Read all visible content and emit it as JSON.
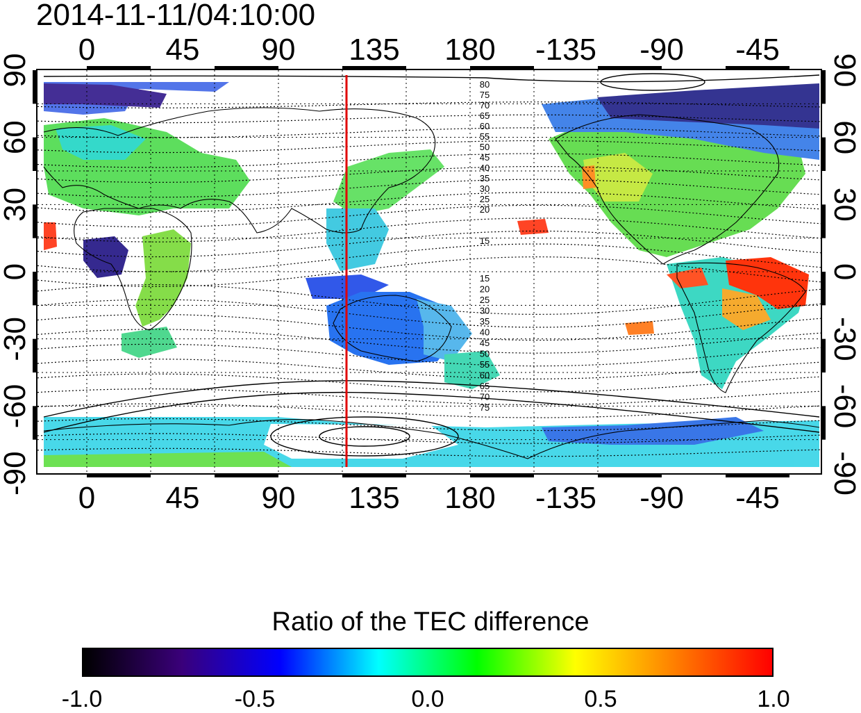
{
  "timestamp": "2014-11-11/04:10:00",
  "map": {
    "top_lon_labels": [
      "0",
      "45",
      "90",
      "135",
      "180",
      "-135",
      "-90",
      "-45"
    ],
    "bottom_lon_labels": [
      "0",
      "45",
      "90",
      "135",
      "180",
      "-135",
      "-90",
      "-45"
    ],
    "left_lat_labels": [
      "90",
      "60",
      "30",
      "0",
      "-30",
      "-60",
      "-90"
    ],
    "right_lat_labels": [
      "90",
      "60",
      "30",
      "0",
      "-30",
      "-60",
      "-90"
    ],
    "marker_line": {
      "longitude": 120,
      "color": "#e00000"
    },
    "north_contour_labels": [
      "80",
      "75",
      "70",
      "65",
      "60",
      "55",
      "50",
      "45",
      "40",
      "35",
      "30",
      "25",
      "20",
      "15"
    ],
    "south_contour_labels": [
      "15",
      "20",
      "25",
      "30",
      "35",
      "40",
      "45",
      "50",
      "55",
      "60",
      "65",
      "70",
      "75"
    ]
  },
  "colorbar": {
    "title": "Ratio of the TEC difference",
    "tick_labels": [
      "-1.0",
      "-0.5",
      "0.0",
      "0.5",
      "1.0"
    ],
    "range": [
      -1.0,
      1.0
    ],
    "colors": [
      "#000000",
      "#3a007a",
      "#0000ff",
      "#00ffff",
      "#00ff00",
      "#ffff00",
      "#ff8000",
      "#ff0000"
    ]
  },
  "regions": [
    {
      "name": "north-america",
      "color": "#33dd44"
    },
    {
      "name": "europe",
      "color": "#44dd55"
    },
    {
      "name": "australia",
      "color": "#1d6cf0"
    },
    {
      "name": "south-america-east",
      "color": "#ff2a00"
    },
    {
      "name": "antarctica",
      "color": "#3fd6e8"
    },
    {
      "name": "arctic",
      "color": "#2a2a8c"
    }
  ]
}
